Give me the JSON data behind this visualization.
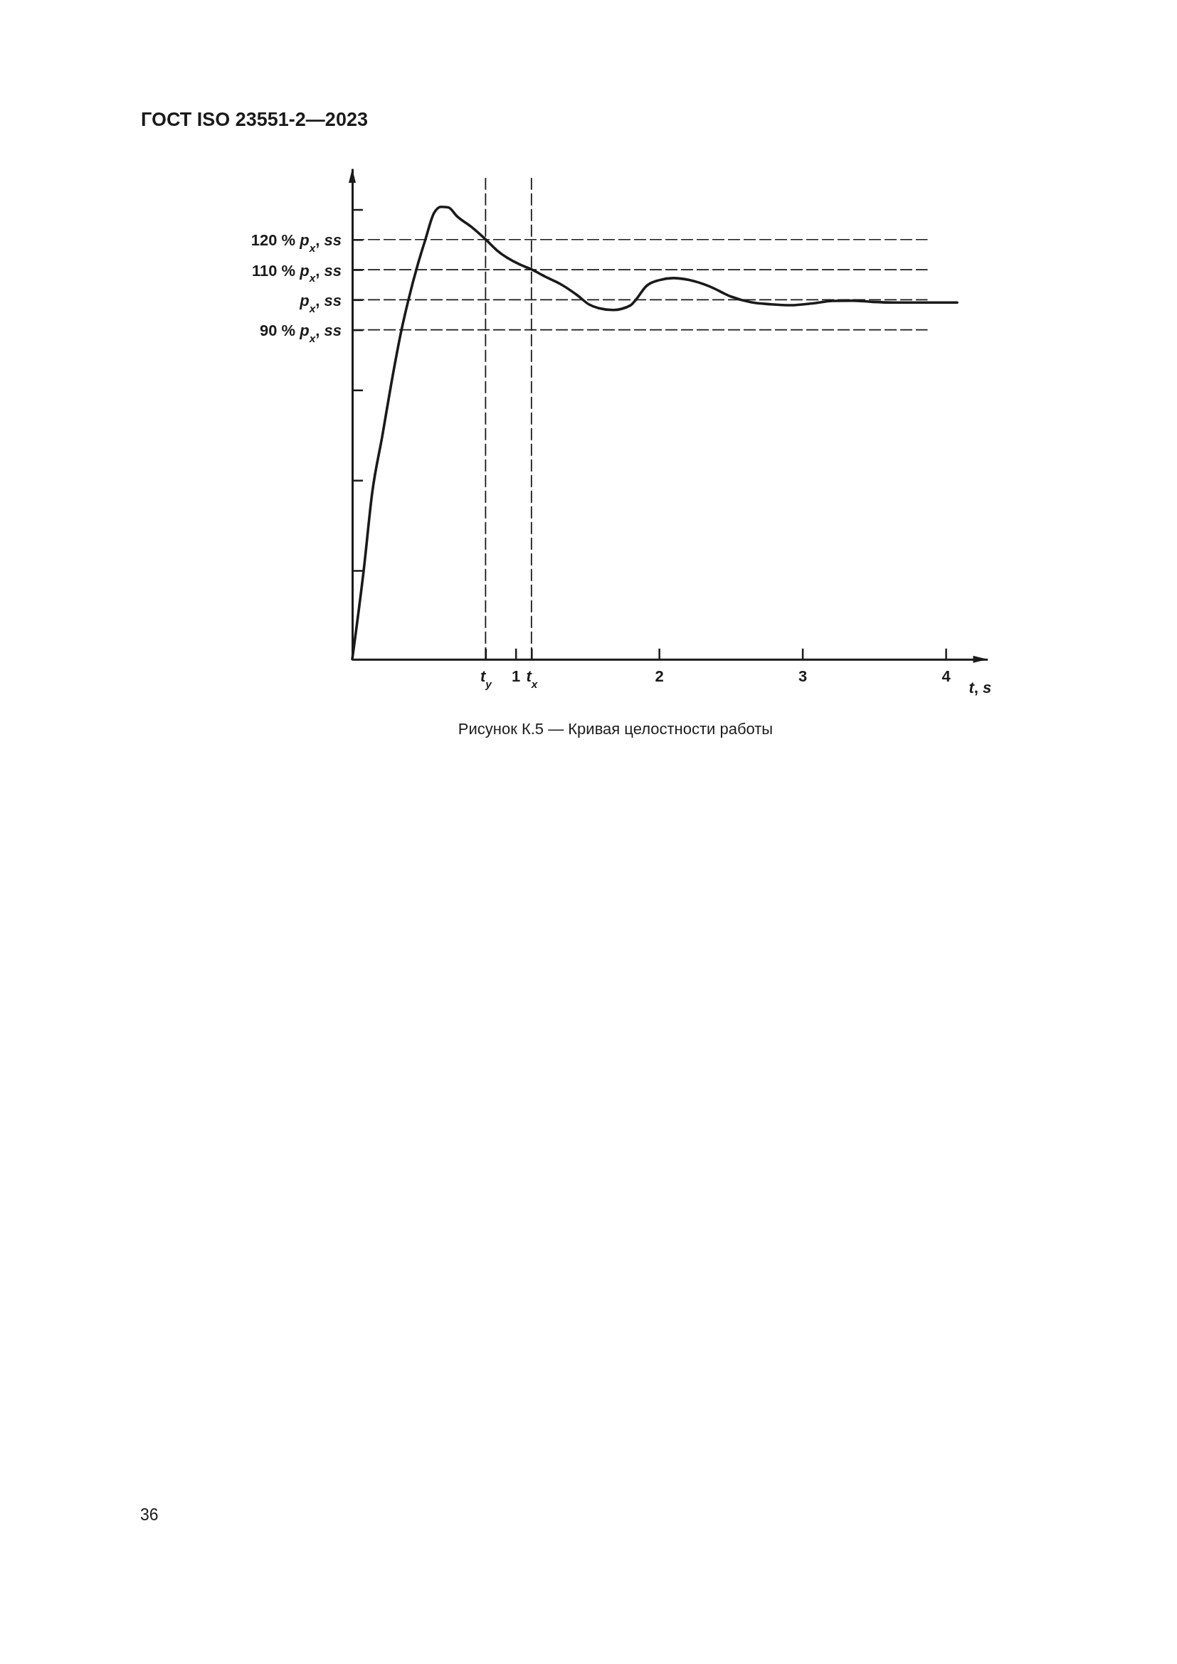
{
  "chart_data": {
    "type": "line",
    "title": "Рисунок К.5 — Кривая целостности работы",
    "xlabel": "t, s",
    "annotations": [
      "ГОСТ ISO 23551-2—2023",
      "36"
    ],
    "x": [
      -0.14,
      -0.06,
      0.0,
      0.07,
      0.13,
      0.2,
      0.25,
      0.32,
      0.37,
      0.43,
      0.48,
      0.53,
      0.59,
      0.7,
      0.79,
      0.87,
      1.03,
      1.11,
      1.21,
      1.31,
      1.43,
      1.51,
      1.58,
      1.68,
      1.8,
      1.84,
      1.91,
      2.0,
      2.1,
      2.21,
      2.35,
      2.5,
      2.64,
      2.78,
      2.92,
      3.07,
      3.21,
      3.35,
      3.49,
      3.64,
      3.78,
      4.08
    ],
    "series": [
      {
        "color": "#1a1a1a",
        "values": [
          -19.5,
          10.1,
          36.1,
          54.8,
          71.5,
          89.2,
          99.6,
          112.2,
          120.0,
          128.8,
          130.9,
          130.7,
          127.8,
          123.9,
          120.1,
          116.4,
          111.7,
          110.1,
          107.6,
          105.3,
          101.5,
          98.5,
          97.2,
          96.6,
          98.1,
          100.1,
          104.5,
          106.5,
          107.2,
          106.6,
          104.5,
          101.1,
          99.2,
          98.5,
          98.2,
          98.8,
          99.6,
          99.7,
          99.3,
          99.1,
          99.1,
          99.1
        ]
      }
    ],
    "xlim": [
      -0.14,
      4.29
    ],
    "ylim": [
      -19.5,
      143.6
    ],
    "xticks": [
      {
        "value": 0.79,
        "label": "t$_{y}$"
      },
      1,
      {
        "value": 1.11,
        "label": "t$_{x}$"
      },
      2,
      3,
      4
    ],
    "yticks": [
      {
        "value": 10,
        "label": null
      },
      {
        "value": 40,
        "label": null
      },
      {
        "value": 70,
        "label": null
      },
      {
        "value": 90,
        "label": "90 % p$_{x}$, ss"
      },
      {
        "value": 100,
        "label": "p$_{x}$, ss"
      },
      {
        "value": 110,
        "label": "110 % p$_{x}$, ss"
      },
      {
        "value": 120,
        "label": "120 % p$_{x}$, ss"
      },
      {
        "value": 130,
        "label": null
      }
    ],
    "ref_lines": [
      {
        "axis": "y",
        "value": 120,
        "line_style": "dashed"
      },
      {
        "axis": "y",
        "value": 110,
        "line_style": "dashed"
      },
      {
        "axis": "y",
        "value": 100,
        "line_style": "dashed"
      },
      {
        "axis": "y",
        "value": 90,
        "line_style": "dashed"
      },
      {
        "axis": "x",
        "value": 0.79,
        "line_style": "dashed"
      },
      {
        "axis": "x",
        "value": 1.11,
        "line_style": "dashed"
      }
    ]
  }
}
